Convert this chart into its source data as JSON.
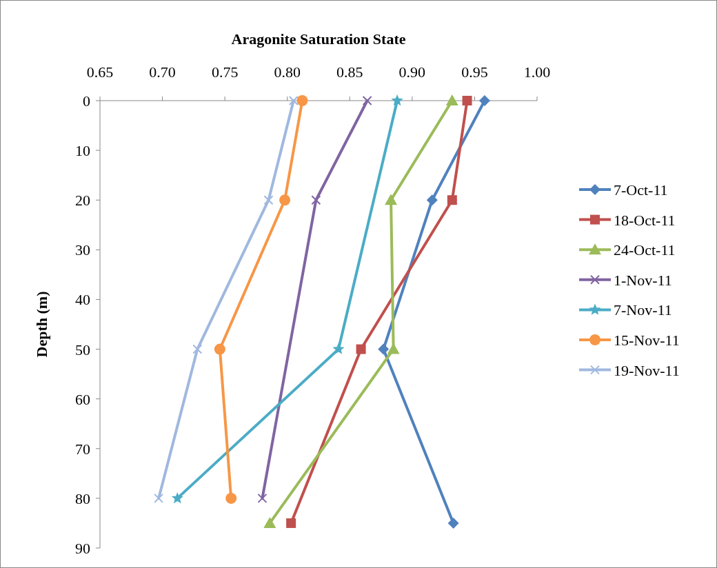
{
  "chart_data": {
    "type": "line",
    "xlabel": "Aragonite Saturation State",
    "ylabel": "Depth (m)",
    "xlim": [
      0.65,
      1.0
    ],
    "xticks": [
      {
        "value": 0.65,
        "label": "0.65"
      },
      {
        "value": 0.7,
        "label": "0.70"
      },
      {
        "value": 0.75,
        "label": "0.75"
      },
      {
        "value": 0.8,
        "label": "0.80"
      },
      {
        "value": 0.85,
        "label": "0.85"
      },
      {
        "value": 0.9,
        "label": "0.90"
      },
      {
        "value": 0.95,
        "label": "0.95"
      },
      {
        "value": 1.0,
        "label": "1.00"
      }
    ],
    "ylim": [
      90,
      0
    ],
    "yticks": [
      0,
      10,
      20,
      30,
      40,
      50,
      60,
      70,
      80,
      90
    ],
    "grid": false,
    "legend": "right",
    "series": [
      {
        "name": "7-Oct-11",
        "color": "#4f81bd",
        "marker": "diamond",
        "x": [
          0.958,
          0.916,
          0.877,
          0.933
        ],
        "values": [
          0,
          20,
          50,
          85
        ]
      },
      {
        "name": "18-Oct-11",
        "color": "#c0504d",
        "marker": "square",
        "x": [
          0.944,
          0.932,
          0.859,
          0.803
        ],
        "values": [
          0,
          20,
          50,
          85
        ]
      },
      {
        "name": "24-Oct-11",
        "color": "#9bbb59",
        "marker": "triangle",
        "x": [
          0.932,
          0.883,
          0.885,
          0.786
        ],
        "values": [
          0,
          20,
          50,
          85
        ]
      },
      {
        "name": "1-Nov-11",
        "color": "#8064a2",
        "marker": "cross",
        "x": [
          0.864,
          0.823,
          0.78
        ],
        "values": [
          0,
          20,
          80
        ]
      },
      {
        "name": "7-Nov-11",
        "color": "#4bacc6",
        "marker": "star",
        "x": [
          0.888,
          0.841,
          0.712
        ],
        "values": [
          0,
          50,
          80
        ]
      },
      {
        "name": "15-Nov-11",
        "color": "#f79646",
        "marker": "circle",
        "x": [
          0.812,
          0.798,
          0.746,
          0.755
        ],
        "values": [
          0,
          20,
          50,
          80
        ]
      },
      {
        "name": "19-Nov-11",
        "color": "#a0b8df",
        "marker": "cross",
        "x": [
          0.805,
          0.785,
          0.728,
          0.697
        ],
        "values": [
          0,
          20,
          50,
          80
        ]
      }
    ]
  }
}
